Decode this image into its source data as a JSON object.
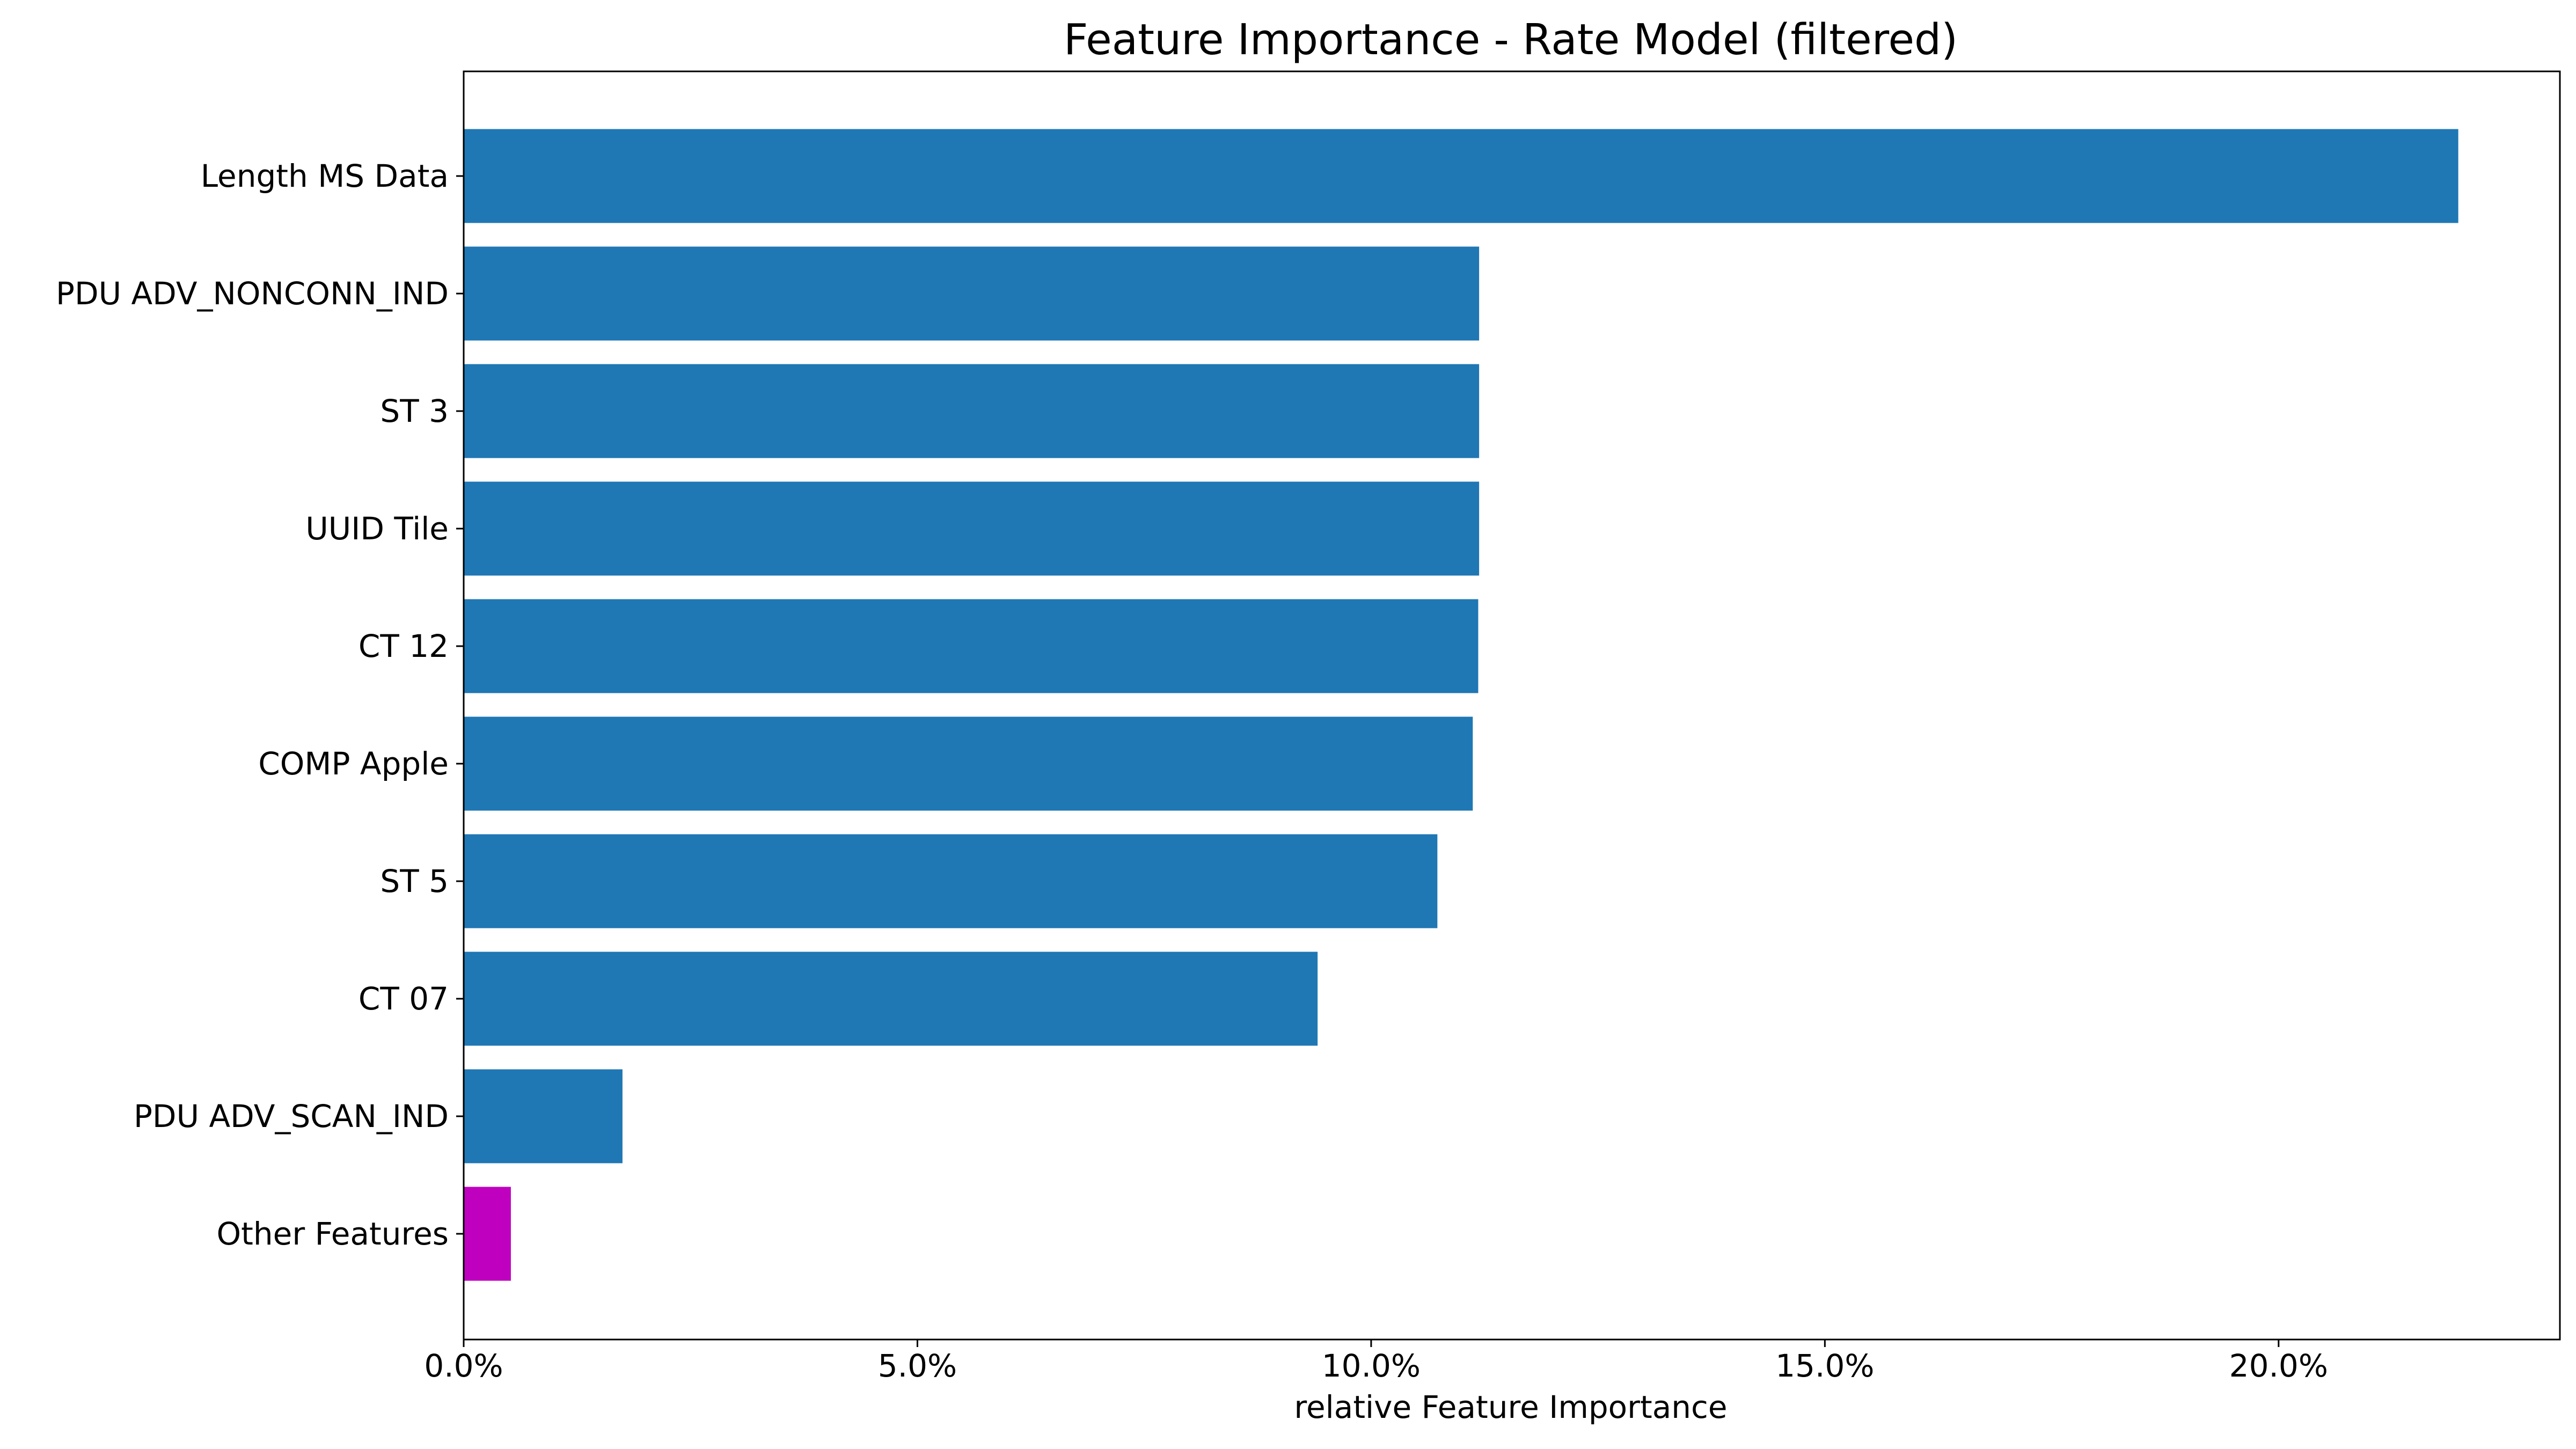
{
  "chart_data": {
    "type": "bar",
    "orientation": "horizontal",
    "title": "Feature Importance - Rate Model (filtered)",
    "xlabel": "relative Feature Importance",
    "ylabel": "",
    "xlim": [
      0,
      0.231
    ],
    "x_ticks": [
      0,
      0.05,
      0.1,
      0.15,
      0.2
    ],
    "x_tick_labels": [
      "0.0%",
      "5.0%",
      "10.0%",
      "15.0%",
      "20.0%"
    ],
    "categories": [
      "Length MS Data",
      "PDU ADV_NONCONN_IND",
      "ST 3",
      "UUID Tile",
      "CT 12",
      "COMP Apple",
      "ST 5",
      "CT 07",
      "PDU ADV_SCAN_IND",
      "Other Features"
    ],
    "values": [
      0.2198,
      0.1119,
      0.1119,
      0.1119,
      0.1118,
      0.1112,
      0.1073,
      0.0941,
      0.0175,
      0.0052
    ],
    "colors": [
      "#1f77b4",
      "#1f77b4",
      "#1f77b4",
      "#1f77b4",
      "#1f77b4",
      "#1f77b4",
      "#1f77b4",
      "#1f77b4",
      "#1f77b4",
      "#bf00bf"
    ],
    "grid": false,
    "legend": "none"
  }
}
